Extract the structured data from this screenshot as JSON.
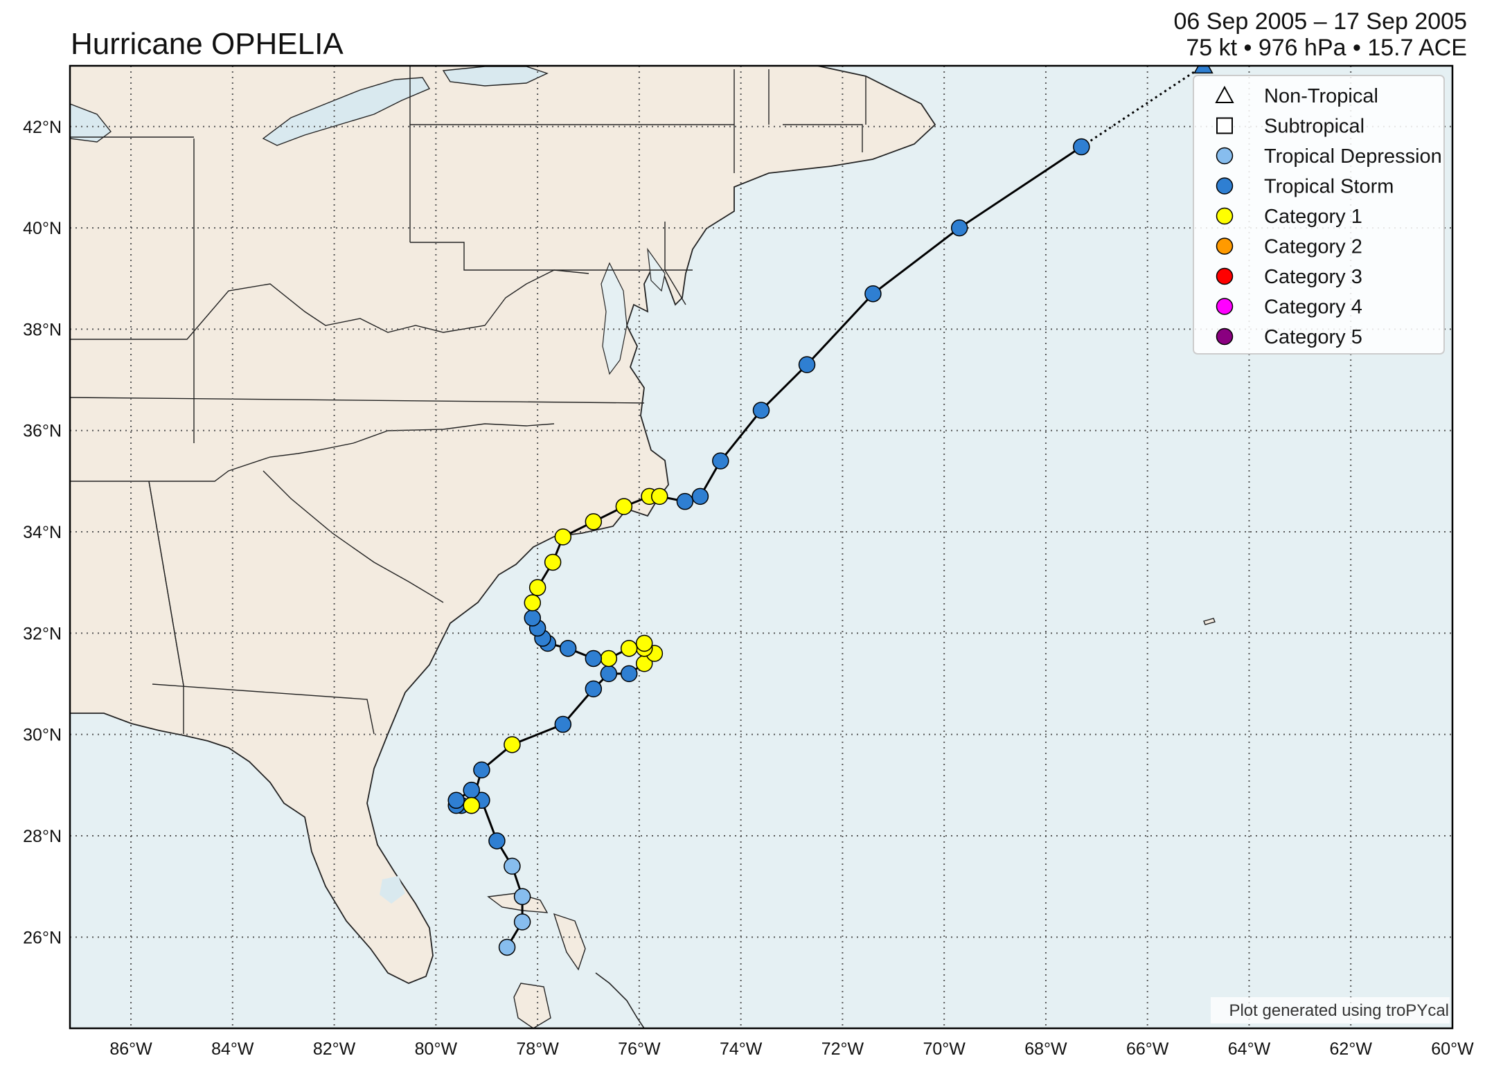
{
  "title": "Hurricane OPHELIA",
  "subtitle_line1": "06 Sep 2005 – 17 Sep 2005",
  "subtitle_line2": "75 kt • 976 hPa • 15.7 ACE",
  "credit": "Plot generated using troPYcal",
  "colors": {
    "land": "#f3ebe0",
    "ocean": "#e5f0f3",
    "lake": "#d9e9ef",
    "track_line": "#000000",
    "td": "#87bdee",
    "ts": "#2f7fd2",
    "cat1": "#ffff00",
    "cat2": "#ff9a00",
    "cat3": "#ff0000",
    "cat4": "#ff00ff",
    "cat5": "#8a0080"
  },
  "legend": [
    {
      "label": "Non-Tropical",
      "icon": "triangle-outline-icon"
    },
    {
      "label": "Subtropical",
      "icon": "square-outline-icon"
    },
    {
      "label": "Tropical Depression",
      "color": "#87bdee"
    },
    {
      "label": "Tropical Storm",
      "color": "#2f7fd2"
    },
    {
      "label": "Category 1",
      "color": "#ffff00"
    },
    {
      "label": "Category 2",
      "color": "#ff9a00"
    },
    {
      "label": "Category 3",
      "color": "#ff0000"
    },
    {
      "label": "Category 4",
      "color": "#ff00ff"
    },
    {
      "label": "Category 5",
      "color": "#8a0080"
    }
  ],
  "lon_ticks": [
    {
      "value": -86,
      "label": "86°W"
    },
    {
      "value": -84,
      "label": "84°W"
    },
    {
      "value": -82,
      "label": "82°W"
    },
    {
      "value": -80,
      "label": "80°W"
    },
    {
      "value": -78,
      "label": "78°W"
    },
    {
      "value": -76,
      "label": "76°W"
    },
    {
      "value": -74,
      "label": "74°W"
    },
    {
      "value": -72,
      "label": "72°W"
    },
    {
      "value": -70,
      "label": "70°W"
    },
    {
      "value": -68,
      "label": "68°W"
    },
    {
      "value": -66,
      "label": "66°W"
    },
    {
      "value": -64,
      "label": "64°W"
    },
    {
      "value": -62,
      "label": "62°W"
    },
    {
      "value": -60,
      "label": "60°W"
    }
  ],
  "lat_ticks": [
    {
      "value": 26,
      "label": "26°N"
    },
    {
      "value": 28,
      "label": "28°N"
    },
    {
      "value": 30,
      "label": "30°N"
    },
    {
      "value": 32,
      "label": "32°N"
    },
    {
      "value": 34,
      "label": "34°N"
    },
    {
      "value": 36,
      "label": "36°N"
    },
    {
      "value": 38,
      "label": "38°N"
    },
    {
      "value": 40,
      "label": "40°N"
    },
    {
      "value": 42,
      "label": "42°N"
    }
  ],
  "map_extent": {
    "lon_min": -87.2,
    "lon_max": -60.0,
    "lat_min": 24.2,
    "lat_max": 43.2
  },
  "track": [
    {
      "lon": -78.6,
      "lat": 25.8,
      "type": "td"
    },
    {
      "lon": -78.3,
      "lat": 26.3,
      "type": "td"
    },
    {
      "lon": -78.3,
      "lat": 26.8,
      "type": "td"
    },
    {
      "lon": -78.5,
      "lat": 27.4,
      "type": "td"
    },
    {
      "lon": -78.8,
      "lat": 27.9,
      "type": "ts"
    },
    {
      "lon": -79.1,
      "lat": 28.7,
      "type": "ts"
    },
    {
      "lon": -79.3,
      "lat": 28.6,
      "type": "ts"
    },
    {
      "lon": -79.5,
      "lat": 28.6,
      "type": "ts"
    },
    {
      "lon": -79.6,
      "lat": 28.6,
      "type": "ts"
    },
    {
      "lon": -79.6,
      "lat": 28.7,
      "type": "ts"
    },
    {
      "lon": -79.3,
      "lat": 28.9,
      "type": "ts"
    },
    {
      "lon": -79.3,
      "lat": 28.6,
      "type": "cat1"
    },
    {
      "lon": -79.1,
      "lat": 29.3,
      "type": "ts"
    },
    {
      "lon": -78.5,
      "lat": 29.8,
      "type": "cat1"
    },
    {
      "lon": -77.5,
      "lat": 30.2,
      "type": "ts"
    },
    {
      "lon": -76.9,
      "lat": 30.9,
      "type": "ts"
    },
    {
      "lon": -76.6,
      "lat": 31.2,
      "type": "ts"
    },
    {
      "lon": -76.2,
      "lat": 31.2,
      "type": "ts"
    },
    {
      "lon": -75.9,
      "lat": 31.4,
      "type": "cat1"
    },
    {
      "lon": -75.7,
      "lat": 31.6,
      "type": "cat1"
    },
    {
      "lon": -75.9,
      "lat": 31.7,
      "type": "cat1"
    },
    {
      "lon": -75.9,
      "lat": 31.8,
      "type": "cat1"
    },
    {
      "lon": -76.2,
      "lat": 31.7,
      "type": "cat1"
    },
    {
      "lon": -76.6,
      "lat": 31.5,
      "type": "cat1"
    },
    {
      "lon": -76.9,
      "lat": 31.5,
      "type": "ts"
    },
    {
      "lon": -77.4,
      "lat": 31.7,
      "type": "ts"
    },
    {
      "lon": -77.8,
      "lat": 31.8,
      "type": "ts"
    },
    {
      "lon": -77.9,
      "lat": 31.9,
      "type": "ts"
    },
    {
      "lon": -78.0,
      "lat": 32.1,
      "type": "ts"
    },
    {
      "lon": -78.1,
      "lat": 32.3,
      "type": "ts"
    },
    {
      "lon": -78.1,
      "lat": 32.6,
      "type": "cat1"
    },
    {
      "lon": -78.0,
      "lat": 32.9,
      "type": "cat1"
    },
    {
      "lon": -77.7,
      "lat": 33.4,
      "type": "cat1"
    },
    {
      "lon": -77.5,
      "lat": 33.9,
      "type": "cat1"
    },
    {
      "lon": -76.9,
      "lat": 34.2,
      "type": "cat1"
    },
    {
      "lon": -76.3,
      "lat": 34.5,
      "type": "cat1"
    },
    {
      "lon": -75.8,
      "lat": 34.7,
      "type": "cat1"
    },
    {
      "lon": -75.6,
      "lat": 34.7,
      "type": "cat1"
    },
    {
      "lon": -75.1,
      "lat": 34.6,
      "type": "ts"
    },
    {
      "lon": -74.8,
      "lat": 34.7,
      "type": "ts"
    },
    {
      "lon": -74.4,
      "lat": 35.4,
      "type": "ts"
    },
    {
      "lon": -73.6,
      "lat": 36.4,
      "type": "ts"
    },
    {
      "lon": -72.7,
      "lat": 37.3,
      "type": "ts"
    },
    {
      "lon": -71.4,
      "lat": 38.7,
      "type": "ts"
    },
    {
      "lon": -69.7,
      "lat": 40.0,
      "type": "ts"
    },
    {
      "lon": -67.3,
      "lat": 41.6,
      "type": "ts"
    },
    {
      "lon": -64.9,
      "lat": 43.2,
      "type": "ts-extratropical",
      "dotted": true
    }
  ]
}
